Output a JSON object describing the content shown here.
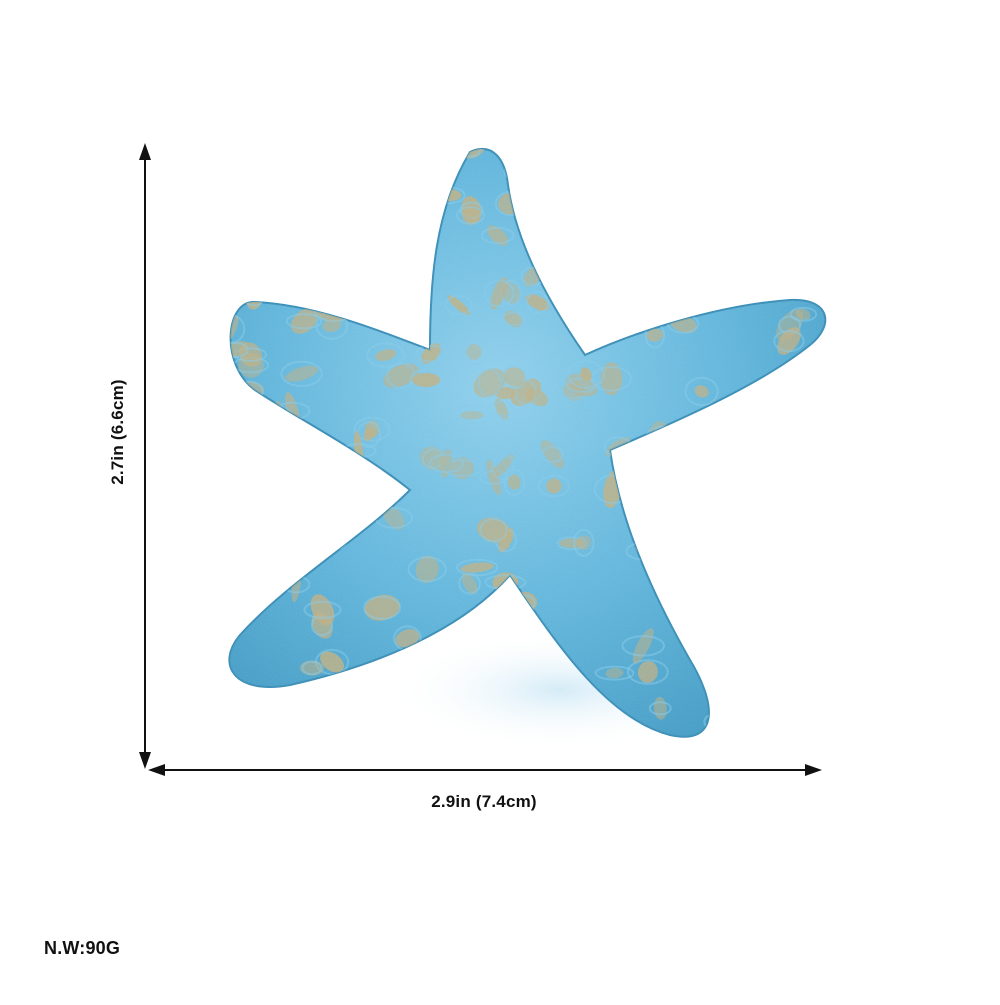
{
  "dimensions": {
    "height_label": "2.7in (6.6cm)",
    "width_label": "2.9in (7.4cm)"
  },
  "weight_label": "N.W:90G",
  "product": {
    "shape": "starfish",
    "colors": {
      "paint": "#5fb8e0",
      "paint_light": "#86cdee",
      "gold": "#c2b283",
      "background": "#ffffff",
      "line": "#111111"
    }
  }
}
